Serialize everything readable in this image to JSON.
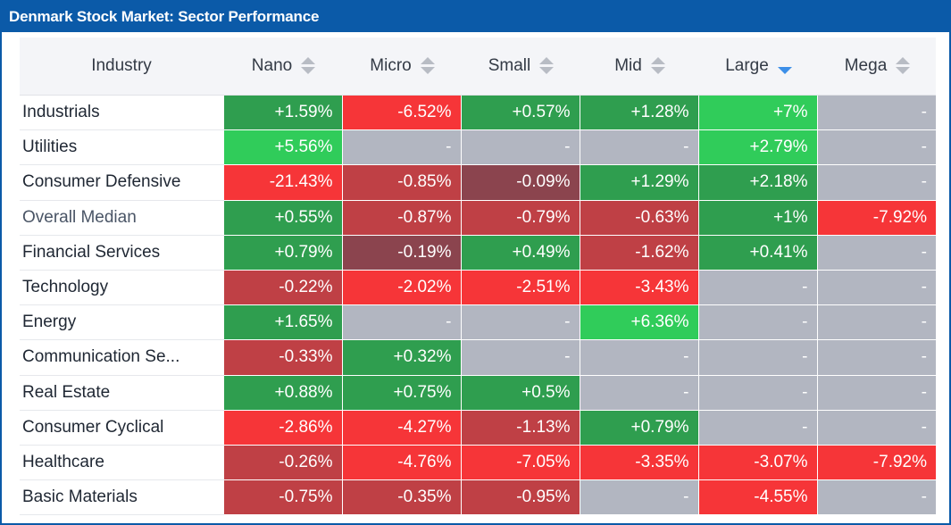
{
  "title": "Denmark Stock Market: Sector Performance",
  "chart_data": {
    "type": "table",
    "title": "Denmark Stock Market: Sector Performance",
    "header": {
      "industry": "Industry",
      "columns": [
        "Nano",
        "Micro",
        "Small",
        "Mid",
        "Large",
        "Mega"
      ],
      "sorted_column": "Large",
      "sort_direction": "descending"
    },
    "rows": [
      {
        "industry": "Industrials",
        "values": [
          "+1.59%",
          "-6.52%",
          "+0.57%",
          "+1.28%",
          "+7%",
          "-"
        ]
      },
      {
        "industry": "Utilities",
        "values": [
          "+5.56%",
          "-",
          "-",
          "-",
          "+2.79%",
          "-"
        ]
      },
      {
        "industry": "Consumer Defensive",
        "values": [
          "-21.43%",
          "-0.85%",
          "-0.09%",
          "+1.29%",
          "+2.18%",
          "-"
        ]
      },
      {
        "industry": "Overall Median",
        "values": [
          "+0.55%",
          "-0.87%",
          "-0.79%",
          "-0.63%",
          "+1%",
          "-7.92%"
        ]
      },
      {
        "industry": "Financial Services",
        "values": [
          "+0.79%",
          "-0.19%",
          "+0.49%",
          "-1.62%",
          "+0.41%",
          "-"
        ]
      },
      {
        "industry": "Technology",
        "values": [
          "-0.22%",
          "-2.02%",
          "-2.51%",
          "-3.43%",
          "-",
          "-"
        ]
      },
      {
        "industry": "Energy",
        "values": [
          "+1.65%",
          "-",
          "-",
          "+6.36%",
          "-",
          "-"
        ]
      },
      {
        "industry": "Communication Se...",
        "values": [
          "-0.33%",
          "+0.32%",
          "-",
          "-",
          "-",
          "-"
        ]
      },
      {
        "industry": "Real Estate",
        "values": [
          "+0.88%",
          "+0.75%",
          "+0.5%",
          "-",
          "-",
          "-"
        ]
      },
      {
        "industry": "Consumer Cyclical",
        "values": [
          "-2.86%",
          "-4.27%",
          "-1.13%",
          "+0.79%",
          "-",
          "-"
        ]
      },
      {
        "industry": "Healthcare",
        "values": [
          "-0.26%",
          "-4.76%",
          "-7.05%",
          "-3.35%",
          "-3.07%",
          "-7.92%"
        ]
      },
      {
        "industry": "Basic Materials",
        "values": [
          "-0.75%",
          "-0.35%",
          "-0.95%",
          "-",
          "-4.55%",
          "-"
        ]
      }
    ],
    "colors": {
      "strong_positive": "#30cc5a",
      "positive": "#2f9e4f",
      "neutral_positive": "#35764e",
      "neutral_negative": "#8b444e",
      "negative": "#bf4045",
      "strong_negative": "#f63538",
      "empty": "#b2b6c1"
    }
  }
}
